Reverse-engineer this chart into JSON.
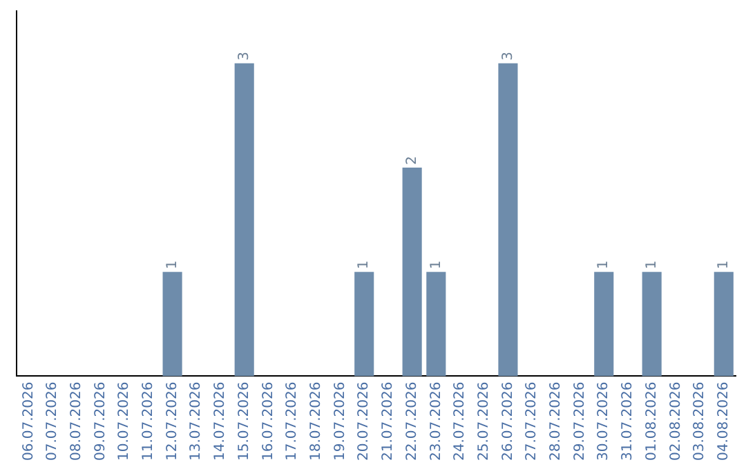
{
  "chart_data": {
    "type": "bar",
    "categories": [
      "06.07.2026",
      "07.07.2026",
      "08.07.2026",
      "09.07.2026",
      "10.07.2026",
      "11.07.2026",
      "12.07.2026",
      "13.07.2026",
      "14.07.2026",
      "15.07.2026",
      "16.07.2026",
      "17.07.2026",
      "18.07.2026",
      "19.07.2026",
      "20.07.2026",
      "21.07.2026",
      "22.07.2026",
      "23.07.2026",
      "24.07.2026",
      "25.07.2026",
      "26.07.2026",
      "27.07.2026",
      "28.07.2026",
      "29.07.2026",
      "30.07.2026",
      "31.07.2026",
      "01.08.2026",
      "02.08.2026",
      "03.08.2026",
      "04.08.2026"
    ],
    "values": [
      0,
      0,
      0,
      0,
      0,
      0,
      1,
      0,
      0,
      3,
      0,
      0,
      0,
      0,
      1,
      0,
      2,
      1,
      0,
      0,
      3,
      0,
      0,
      0,
      1,
      0,
      1,
      0,
      0,
      1
    ],
    "value_labels": [
      null,
      null,
      null,
      null,
      null,
      null,
      "1",
      null,
      null,
      "3",
      null,
      null,
      null,
      null,
      "1",
      null,
      "2",
      "1",
      null,
      null,
      "3",
      null,
      null,
      null,
      "1",
      null,
      "1",
      null,
      null,
      "1"
    ],
    "color": "#6e8cab",
    "grid": false,
    "legend": false,
    "tick_labels": "x"
  }
}
